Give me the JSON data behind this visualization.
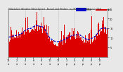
{
  "bg_color": "#e8e8e8",
  "plot_bg_color": "#e8e8e8",
  "bar_color": "#dd0000",
  "median_color": "#0000cc",
  "grid_color": "#888888",
  "ylim": [
    0,
    25
  ],
  "yticks": [
    5,
    10,
    15,
    20,
    25
  ],
  "num_points": 1440,
  "seed": 42,
  "title_fontsize": 2.8,
  "tick_fontsize": 2.5
}
